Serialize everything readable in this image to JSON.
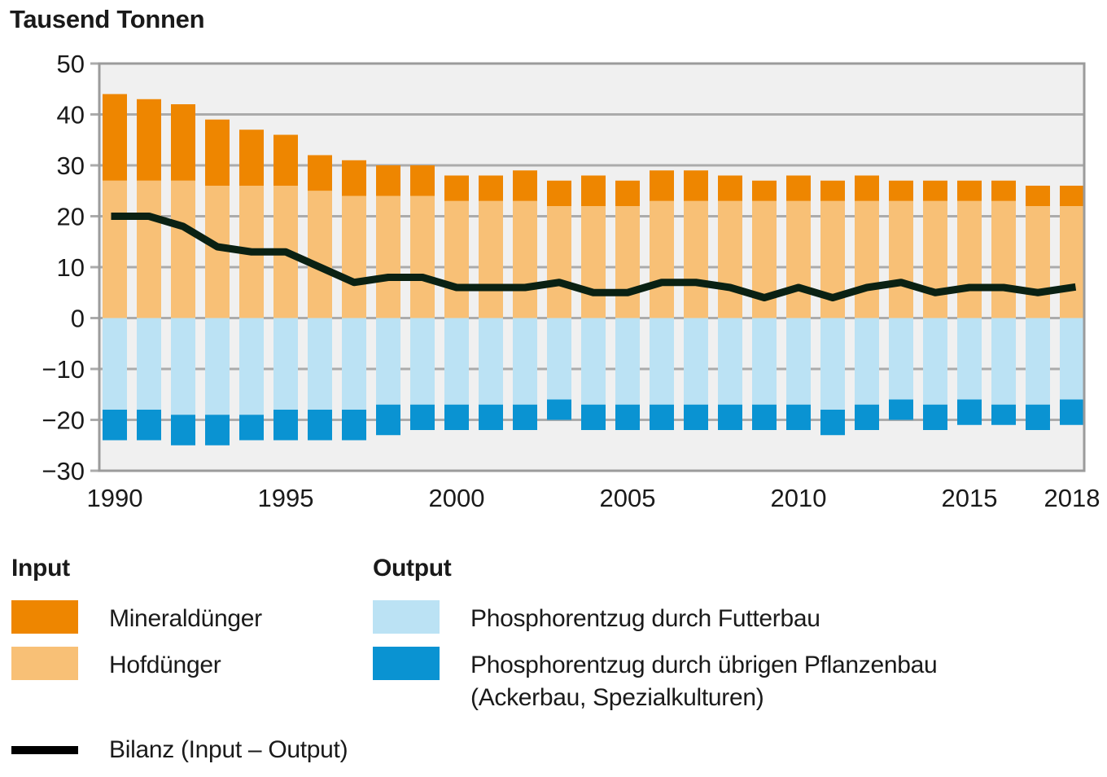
{
  "chart_data": {
    "type": "bar",
    "title": "Tausend Tonnen",
    "stacked": true,
    "grid": true,
    "legend_position": "bottom",
    "ylim": [
      -30,
      50
    ],
    "yticks": [
      "50",
      "40",
      "30",
      "20",
      "10",
      "0",
      "−10",
      "−20",
      "−30"
    ],
    "ytick_values": [
      50,
      40,
      30,
      20,
      10,
      0,
      -10,
      -20,
      -30
    ],
    "categories": [
      1990,
      1991,
      1992,
      1993,
      1994,
      1995,
      1996,
      1997,
      1998,
      1999,
      2000,
      2001,
      2002,
      2003,
      2004,
      2005,
      2006,
      2007,
      2008,
      2009,
      2010,
      2011,
      2012,
      2013,
      2014,
      2015,
      2016,
      2017,
      2018
    ],
    "xticks": [
      {
        "label": "1990",
        "index": 0
      },
      {
        "label": "1995",
        "index": 5
      },
      {
        "label": "2000",
        "index": 10
      },
      {
        "label": "2005",
        "index": 15
      },
      {
        "label": "2010",
        "index": 20
      },
      {
        "label": "2015",
        "index": 25
      },
      {
        "label": "2018",
        "index": 28
      }
    ],
    "series": [
      {
        "key": "hofduenger",
        "name": "Hofdünger",
        "group": "Input",
        "color": "#f8c076",
        "values": [
          27,
          27,
          27,
          26,
          26,
          26,
          25,
          24,
          24,
          24,
          23,
          23,
          23,
          22,
          22,
          22,
          23,
          23,
          23,
          23,
          23,
          23,
          23,
          23,
          23,
          23,
          23,
          22,
          22
        ]
      },
      {
        "key": "mineralduenger",
        "name": "Mineraldünger",
        "group": "Input",
        "color": "#ee8600",
        "values": [
          17,
          16,
          15,
          13,
          11,
          10,
          7,
          7,
          6,
          6,
          5,
          5,
          6,
          5,
          6,
          5,
          6,
          6,
          5,
          4,
          5,
          4,
          5,
          4,
          4,
          4,
          4,
          4,
          4
        ]
      },
      {
        "key": "futterbau",
        "name": "Phosphorentzug durch Futterbau",
        "group": "Output",
        "color": "#bbe2f4",
        "values": [
          -18,
          -18,
          -19,
          -19,
          -19,
          -18,
          -18,
          -18,
          -17,
          -17,
          -17,
          -17,
          -17,
          -16,
          -17,
          -17,
          -17,
          -17,
          -17,
          -17,
          -17,
          -18,
          -17,
          -16,
          -17,
          -16,
          -17,
          -17,
          -16
        ]
      },
      {
        "key": "uebriger-pflanzenbau",
        "name": "Phosphorentzug durch übrigen Pflanzenbau",
        "name_line2": "(Ackerbau, Spezialkulturen)",
        "group": "Output",
        "color": "#0a93d2",
        "values": [
          -6,
          -6,
          -6,
          -6,
          -5,
          -6,
          -6,
          -6,
          -6,
          -5,
          -5,
          -5,
          -5,
          -4,
          -5,
          -5,
          -5,
          -5,
          -5,
          -5,
          -5,
          -5,
          -5,
          -4,
          -5,
          -5,
          -4,
          -5,
          -5
        ]
      },
      {
        "key": "bilanz",
        "name": "Bilanz (Input – Output)",
        "type": "line",
        "color": "#0a2113",
        "values": [
          20,
          20,
          18,
          14,
          13,
          13,
          10,
          7,
          8,
          8,
          6,
          6,
          6,
          7,
          5,
          5,
          7,
          7,
          6,
          4,
          6,
          4,
          6,
          7,
          5,
          6,
          6,
          5,
          6
        ]
      }
    ]
  },
  "legend": {
    "input_header": "Input",
    "output_header": "Output",
    "bilanz_swatch_color": "#000000"
  },
  "colors": {
    "plot_bg": "#f0f0f0",
    "grid": "#ababab",
    "border": "#9b9b9b",
    "text": "#1a1a1a"
  }
}
